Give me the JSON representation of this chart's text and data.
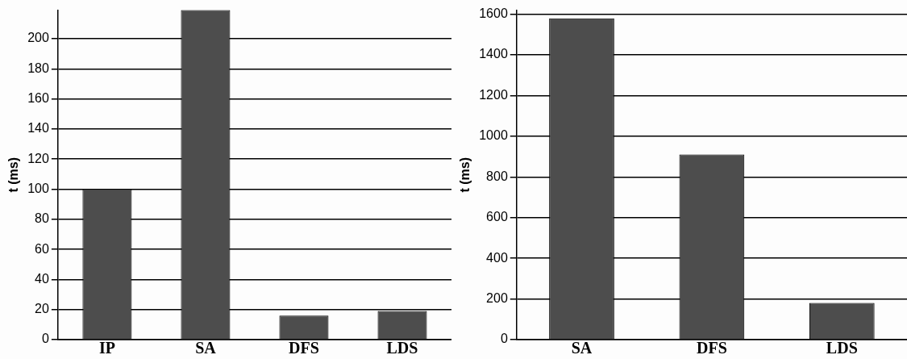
{
  "chart_data": [
    {
      "type": "bar",
      "ylabel": "t (ms)",
      "categories": [
        "IP",
        "SA",
        "DFS",
        "LDS"
      ],
      "values": [
        100,
        219,
        16,
        19
      ],
      "color": "#4d4d4d",
      "ylim": [
        0,
        219
      ],
      "yticks": [
        0,
        20,
        40,
        60,
        80,
        100,
        120,
        140,
        160,
        180,
        200
      ],
      "grid": "y",
      "legend": false
    },
    {
      "type": "bar",
      "ylabel": "t (ms)",
      "categories": [
        "SA",
        "DFS",
        "LDS"
      ],
      "values": [
        1580,
        910,
        180
      ],
      "color": "#4d4d4d",
      "ylim": [
        0,
        1620
      ],
      "yticks": [
        0,
        200,
        400,
        600,
        800,
        1000,
        1200,
        1400,
        1600
      ],
      "grid": "y",
      "legend": false
    }
  ]
}
